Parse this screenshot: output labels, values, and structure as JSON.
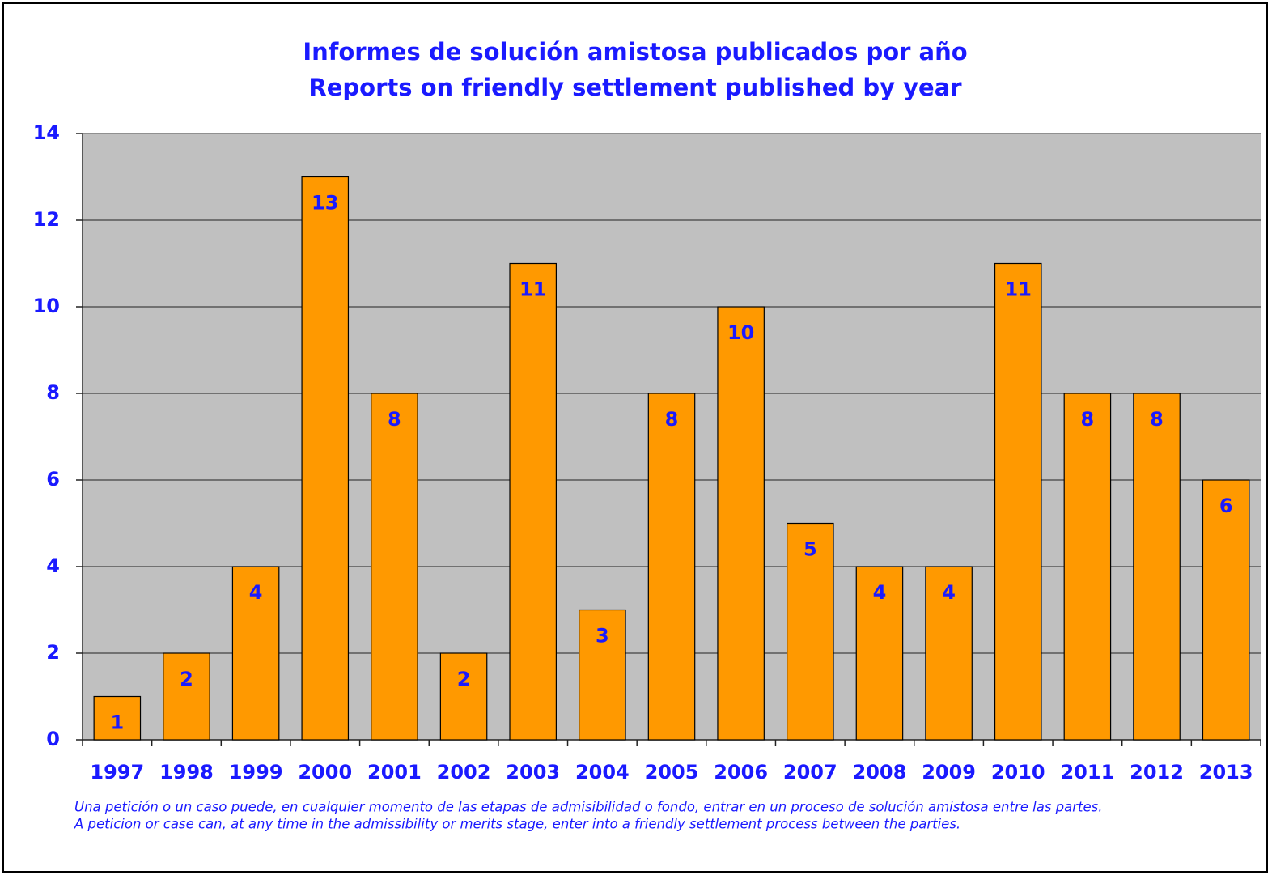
{
  "chart_data": {
    "type": "bar",
    "title": "Informes de solución amistosa publicados por año",
    "subtitle": "Reports on friendly settlement published by year",
    "categories": [
      "1997",
      "1998",
      "1999",
      "2000",
      "2001",
      "2002",
      "2003",
      "2004",
      "2005",
      "2006",
      "2007",
      "2008",
      "2009",
      "2010",
      "2011",
      "2012",
      "2013"
    ],
    "values": [
      1,
      2,
      4,
      13,
      8,
      2,
      11,
      3,
      8,
      10,
      5,
      4,
      4,
      11,
      8,
      8,
      6
    ],
    "color": "#ff9900",
    "ylim": [
      0,
      14
    ],
    "yticks": [
      0,
      2,
      4,
      6,
      8,
      10,
      12,
      14
    ],
    "grid": true,
    "notes": [
      "Una petición o un caso puede, en cualquier momento de las etapas de admisibilidad o fondo, entrar en un proceso de solución amistosa entre las partes.",
      "A peticion or case can, at any time in the admissibility or merits stage, enter into a friendly settlement process between the parties."
    ]
  }
}
